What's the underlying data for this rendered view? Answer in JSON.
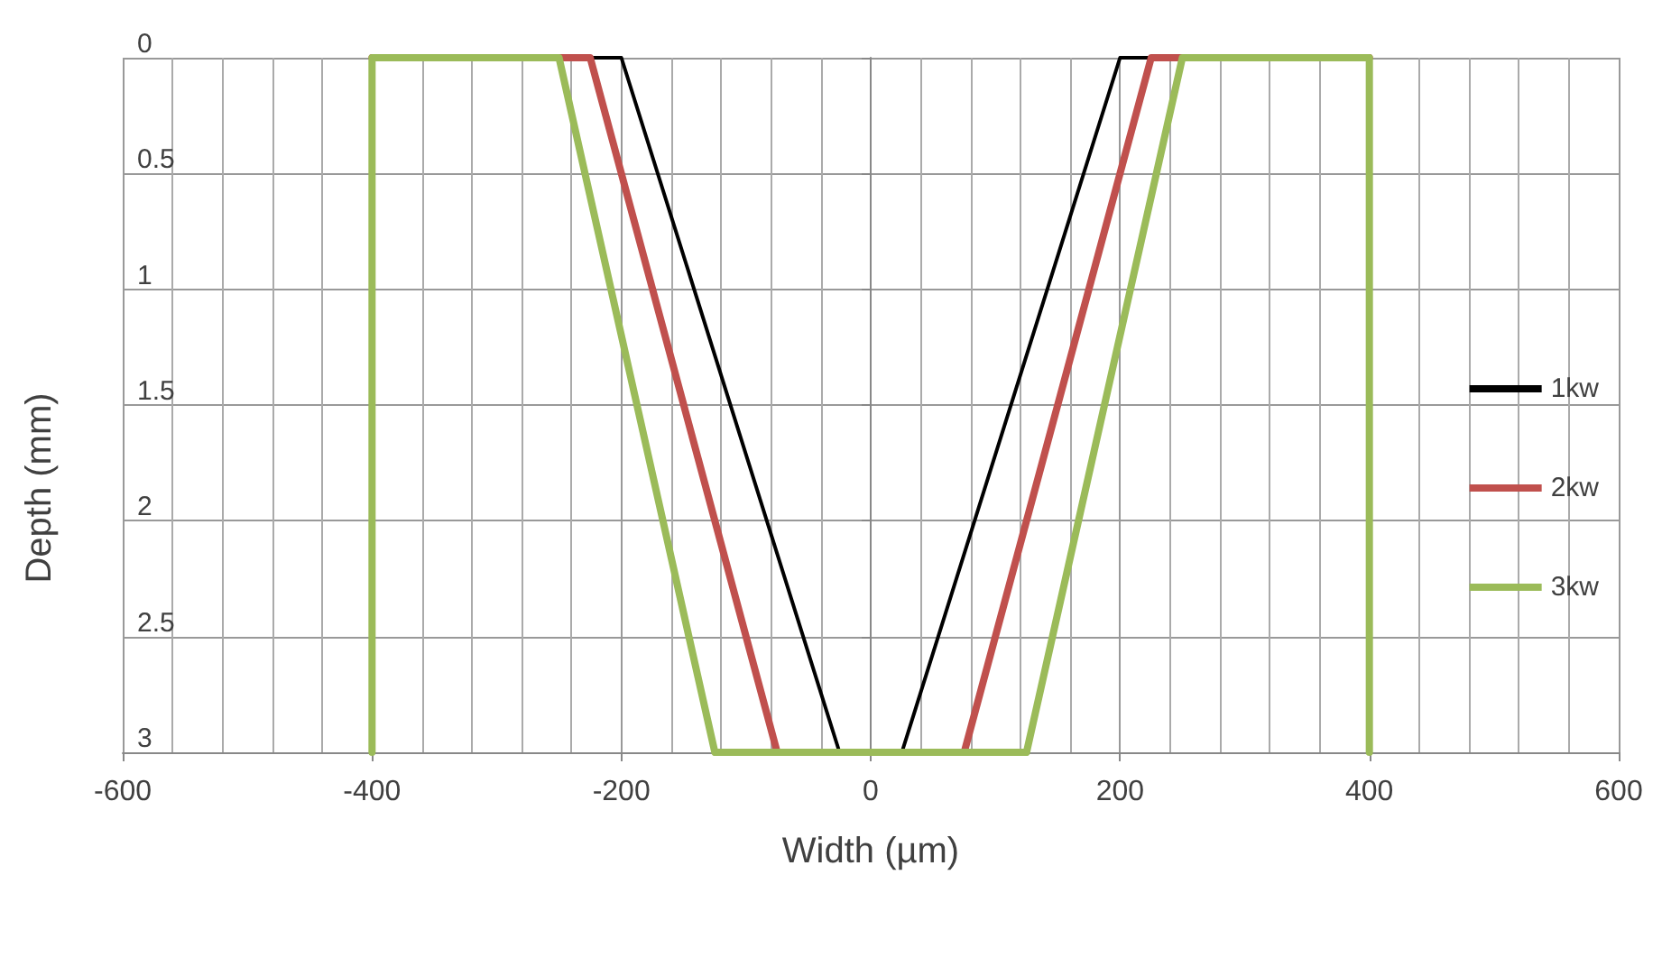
{
  "chart_data": {
    "type": "line",
    "xlabel": "Width (µm)",
    "ylabel": "Depth (mm)",
    "series": [
      {
        "name": "1kw",
        "color": "#000000",
        "x": [
          -400,
          -200,
          -25,
          25,
          200,
          400
        ],
        "values": [
          0,
          0,
          3,
          3,
          0,
          0
        ]
      },
      {
        "name": "2kw",
        "color": "#c0504d",
        "x": [
          -400,
          -225,
          -75,
          75,
          225,
          400
        ],
        "values": [
          0,
          0,
          3,
          3,
          0,
          0
        ]
      },
      {
        "name": "3kw",
        "color": "#9bbb59",
        "x": [
          -400,
          -400,
          -250,
          -125,
          125,
          250,
          400,
          400
        ],
        "values": [
          3,
          0,
          0,
          3,
          3,
          0,
          0,
          3
        ]
      }
    ],
    "xlim": [
      -600,
      600
    ],
    "xticks": [
      -600,
      -400,
      -200,
      0,
      200,
      400,
      600
    ],
    "ylim": [
      3,
      0
    ],
    "yticks": [
      0,
      0.5,
      1,
      1.5,
      2,
      2.5,
      3
    ],
    "grid": true,
    "legend": "right",
    "marker": "none",
    "line_style": "solid"
  }
}
